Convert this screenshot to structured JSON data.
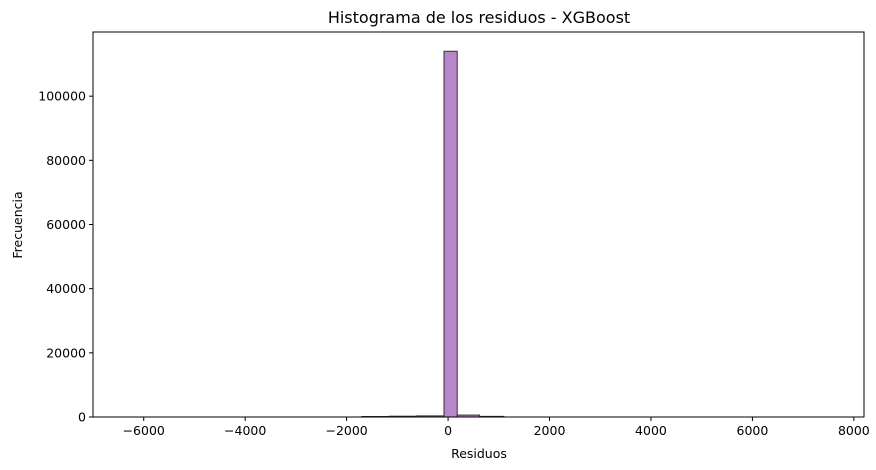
{
  "chart_data": {
    "type": "bar",
    "title": "Histograma de los residuos - XGBoost",
    "xlabel": "Residuos",
    "ylabel": "Frecuencia",
    "xlim": [
      -7000,
      8200
    ],
    "ylim": [
      0,
      120000
    ],
    "xticks": [
      -6000,
      -4000,
      -2000,
      0,
      2000,
      4000,
      6000,
      8000
    ],
    "yticks": [
      0,
      20000,
      40000,
      60000,
      80000,
      100000
    ],
    "bar_color": "#b886ca",
    "edge_color": "#333333",
    "bins": [
      {
        "x0": -1700,
        "x1": -1160,
        "value": 150
      },
      {
        "x0": -1160,
        "x1": -620,
        "value": 250
      },
      {
        "x0": -620,
        "x1": -80,
        "value": 350
      },
      {
        "x0": -80,
        "x1": 180,
        "value": 114000
      },
      {
        "x0": 180,
        "x1": 620,
        "value": 600
      },
      {
        "x0": 620,
        "x1": 1100,
        "value": 200
      }
    ]
  }
}
